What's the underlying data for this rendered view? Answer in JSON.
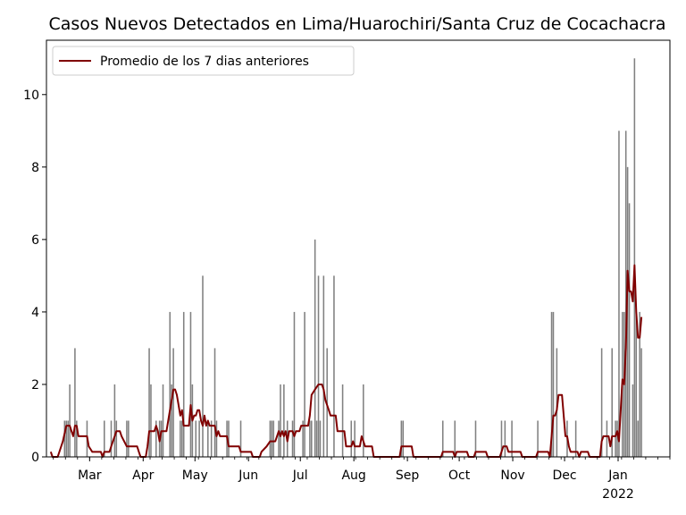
{
  "chart_data": {
    "type": "bar",
    "title": "Casos Nuevos Detectados en Lima/Huarochiri/Santa Cruz de Cocachacra",
    "xlabel": "",
    "ylabel": "",
    "ylim": [
      0,
      11.5
    ],
    "yticks": [
      0,
      2,
      4,
      6,
      8,
      10
    ],
    "x_start": "2021-02-04",
    "x_end": "2022-01-31",
    "xtick_labels": [
      {
        "date": "2021-03-01",
        "label": "Mar"
      },
      {
        "date": "2021-04-01",
        "label": "Apr"
      },
      {
        "date": "2021-05-01",
        "label": "May"
      },
      {
        "date": "2021-06-01",
        "label": "Jun"
      },
      {
        "date": "2021-07-01",
        "label": "Jul"
      },
      {
        "date": "2021-08-01",
        "label": "Aug"
      },
      {
        "date": "2021-09-01",
        "label": "Sep"
      },
      {
        "date": "2021-10-01",
        "label": "Oct"
      },
      {
        "date": "2021-11-01",
        "label": "Nov"
      },
      {
        "date": "2021-12-01",
        "label": "Dec"
      },
      {
        "date": "2022-01-01",
        "label": "Jan",
        "sublabel": "2022"
      }
    ],
    "legend": {
      "label": "Promedio de los 7 dias anteriores",
      "position": "upper-left"
    },
    "bar_color": "#808080",
    "line_color": "#800000",
    "bars": [
      [
        "2021-02-14",
        1
      ],
      [
        "2021-02-15",
        1
      ],
      [
        "2021-02-16",
        1
      ],
      [
        "2021-02-17",
        2
      ],
      [
        "2021-02-20",
        3
      ],
      [
        "2021-02-21",
        1
      ],
      [
        "2021-02-27",
        1
      ],
      [
        "2021-03-09",
        1
      ],
      [
        "2021-03-13",
        1
      ],
      [
        "2021-03-15",
        2
      ],
      [
        "2021-03-16",
        1
      ],
      [
        "2021-03-22",
        1
      ],
      [
        "2021-03-23",
        1
      ],
      [
        "2021-04-04",
        3
      ],
      [
        "2021-04-05",
        2
      ],
      [
        "2021-04-08",
        1
      ],
      [
        "2021-04-10",
        1
      ],
      [
        "2021-04-11",
        1
      ],
      [
        "2021-04-12",
        2
      ],
      [
        "2021-04-16",
        4
      ],
      [
        "2021-04-17",
        2
      ],
      [
        "2021-04-18",
        3
      ],
      [
        "2021-04-22",
        1
      ],
      [
        "2021-04-23",
        1
      ],
      [
        "2021-04-24",
        4
      ],
      [
        "2021-04-28",
        4
      ],
      [
        "2021-04-29",
        2
      ],
      [
        "2021-05-01",
        1
      ],
      [
        "2021-05-03",
        1
      ],
      [
        "2021-05-05",
        5
      ],
      [
        "2021-05-08",
        1
      ],
      [
        "2021-05-10",
        1
      ],
      [
        "2021-05-12",
        3
      ],
      [
        "2021-05-13",
        1
      ],
      [
        "2021-05-19",
        1
      ],
      [
        "2021-05-20",
        1
      ],
      [
        "2021-05-27",
        1
      ],
      [
        "2021-06-13",
        1
      ],
      [
        "2021-06-14",
        1
      ],
      [
        "2021-06-15",
        1
      ],
      [
        "2021-06-18",
        1
      ],
      [
        "2021-06-19",
        2
      ],
      [
        "2021-06-21",
        2
      ],
      [
        "2021-06-23",
        1
      ],
      [
        "2021-06-26",
        1
      ],
      [
        "2021-06-27",
        4
      ],
      [
        "2021-07-02",
        1
      ],
      [
        "2021-07-03",
        4
      ],
      [
        "2021-07-06",
        1
      ],
      [
        "2021-07-07",
        1
      ],
      [
        "2021-07-09",
        6
      ],
      [
        "2021-07-10",
        1
      ],
      [
        "2021-07-11",
        5
      ],
      [
        "2021-07-12",
        1
      ],
      [
        "2021-07-14",
        5
      ],
      [
        "2021-07-16",
        3
      ],
      [
        "2021-07-20",
        5
      ],
      [
        "2021-07-25",
        2
      ],
      [
        "2021-07-30",
        1
      ],
      [
        "2021-08-01",
        1
      ],
      [
        "2021-08-06",
        2
      ],
      [
        "2021-08-28",
        1
      ],
      [
        "2021-08-29",
        1
      ],
      [
        "2021-09-21",
        1
      ],
      [
        "2021-09-28",
        1
      ],
      [
        "2021-10-10",
        1
      ],
      [
        "2021-10-25",
        1
      ],
      [
        "2021-10-27",
        1
      ],
      [
        "2021-10-31",
        1
      ],
      [
        "2021-11-15",
        1
      ],
      [
        "2021-11-23",
        4
      ],
      [
        "2021-11-24",
        4
      ],
      [
        "2021-11-26",
        3
      ],
      [
        "2021-12-02",
        1
      ],
      [
        "2021-12-07",
        1
      ],
      [
        "2021-12-22",
        3
      ],
      [
        "2021-12-25",
        1
      ],
      [
        "2021-12-28",
        3
      ],
      [
        "2021-12-30",
        1
      ],
      [
        "2021-12-31",
        1
      ],
      [
        "2022-01-01",
        9
      ],
      [
        "2022-01-03",
        4
      ],
      [
        "2022-01-04",
        4
      ],
      [
        "2022-01-05",
        9
      ],
      [
        "2022-01-06",
        8
      ],
      [
        "2022-01-07",
        7
      ],
      [
        "2022-01-09",
        2
      ],
      [
        "2022-01-10",
        11
      ],
      [
        "2022-01-11",
        4
      ],
      [
        "2022-01-12",
        1
      ],
      [
        "2022-01-13",
        4
      ],
      [
        "2022-01-14",
        3
      ]
    ],
    "avg_line": [
      [
        "2021-02-06",
        0.14
      ],
      [
        "2021-02-07",
        0.0
      ],
      [
        "2021-02-10",
        0.0
      ],
      [
        "2021-02-11",
        0.14
      ],
      [
        "2021-02-13",
        0.43
      ],
      [
        "2021-02-15",
        0.86
      ],
      [
        "2021-02-17",
        0.86
      ],
      [
        "2021-02-18",
        0.71
      ],
      [
        "2021-02-19",
        0.57
      ],
      [
        "2021-02-20",
        0.86
      ],
      [
        "2021-02-21",
        0.86
      ],
      [
        "2021-02-22",
        0.57
      ],
      [
        "2021-02-27",
        0.57
      ],
      [
        "2021-02-28",
        0.29
      ],
      [
        "2021-03-02",
        0.14
      ],
      [
        "2021-03-07",
        0.14
      ],
      [
        "2021-03-08",
        0.0
      ],
      [
        "2021-03-09",
        0.14
      ],
      [
        "2021-03-12",
        0.14
      ],
      [
        "2021-03-13",
        0.29
      ],
      [
        "2021-03-14",
        0.43
      ],
      [
        "2021-03-15",
        0.57
      ],
      [
        "2021-03-16",
        0.71
      ],
      [
        "2021-03-18",
        0.71
      ],
      [
        "2021-03-19",
        0.57
      ],
      [
        "2021-03-22",
        0.29
      ],
      [
        "2021-03-28",
        0.29
      ],
      [
        "2021-03-29",
        0.14
      ],
      [
        "2021-03-30",
        0.0
      ],
      [
        "2021-04-02",
        0.0
      ],
      [
        "2021-04-03",
        0.29
      ],
      [
        "2021-04-04",
        0.71
      ],
      [
        "2021-04-07",
        0.71
      ],
      [
        "2021-04-08",
        0.86
      ],
      [
        "2021-04-09",
        0.71
      ],
      [
        "2021-04-10",
        0.43
      ],
      [
        "2021-04-11",
        0.71
      ],
      [
        "2021-04-14",
        0.71
      ],
      [
        "2021-04-15",
        1.0
      ],
      [
        "2021-04-16",
        1.29
      ],
      [
        "2021-04-17",
        1.57
      ],
      [
        "2021-04-18",
        1.86
      ],
      [
        "2021-04-19",
        1.86
      ],
      [
        "2021-04-20",
        1.71
      ],
      [
        "2021-04-21",
        1.43
      ],
      [
        "2021-04-22",
        1.14
      ],
      [
        "2021-04-23",
        1.29
      ],
      [
        "2021-04-24",
        0.86
      ],
      [
        "2021-04-27",
        0.86
      ],
      [
        "2021-04-28",
        1.43
      ],
      [
        "2021-04-29",
        1.0
      ],
      [
        "2021-04-30",
        1.14
      ],
      [
        "2021-05-01",
        1.14
      ],
      [
        "2021-05-02",
        1.29
      ],
      [
        "2021-05-03",
        1.29
      ],
      [
        "2021-05-04",
        1.0
      ],
      [
        "2021-05-05",
        0.86
      ],
      [
        "2021-05-06",
        1.14
      ],
      [
        "2021-05-07",
        0.86
      ],
      [
        "2021-05-08",
        1.0
      ],
      [
        "2021-05-09",
        0.86
      ],
      [
        "2021-05-12",
        0.86
      ],
      [
        "2021-05-13",
        0.57
      ],
      [
        "2021-05-14",
        0.71
      ],
      [
        "2021-05-15",
        0.57
      ],
      [
        "2021-05-19",
        0.57
      ],
      [
        "2021-05-20",
        0.29
      ],
      [
        "2021-05-26",
        0.29
      ],
      [
        "2021-05-27",
        0.14
      ],
      [
        "2021-06-02",
        0.14
      ],
      [
        "2021-06-03",
        0.0
      ],
      [
        "2021-06-07",
        0.0
      ],
      [
        "2021-06-08",
        0.14
      ],
      [
        "2021-06-11",
        0.29
      ],
      [
        "2021-06-13",
        0.43
      ],
      [
        "2021-06-16",
        0.43
      ],
      [
        "2021-06-17",
        0.57
      ],
      [
        "2021-06-18",
        0.71
      ],
      [
        "2021-06-19",
        0.57
      ],
      [
        "2021-06-20",
        0.71
      ],
      [
        "2021-06-21",
        0.57
      ],
      [
        "2021-06-22",
        0.71
      ],
      [
        "2021-06-23",
        0.43
      ],
      [
        "2021-06-24",
        0.71
      ],
      [
        "2021-06-26",
        0.71
      ],
      [
        "2021-06-27",
        0.57
      ],
      [
        "2021-06-28",
        0.71
      ],
      [
        "2021-06-30",
        0.71
      ],
      [
        "2021-07-01",
        0.86
      ],
      [
        "2021-07-05",
        0.86
      ],
      [
        "2021-07-06",
        1.14
      ],
      [
        "2021-07-07",
        1.71
      ],
      [
        "2021-07-09",
        1.86
      ],
      [
        "2021-07-11",
        2.0
      ],
      [
        "2021-07-13",
        2.0
      ],
      [
        "2021-07-14",
        1.86
      ],
      [
        "2021-07-15",
        1.57
      ],
      [
        "2021-07-16",
        1.43
      ],
      [
        "2021-07-17",
        1.29
      ],
      [
        "2021-07-18",
        1.14
      ],
      [
        "2021-07-21",
        1.14
      ],
      [
        "2021-07-22",
        0.71
      ],
      [
        "2021-07-26",
        0.71
      ],
      [
        "2021-07-27",
        0.29
      ],
      [
        "2021-07-30",
        0.29
      ],
      [
        "2021-07-31",
        0.43
      ],
      [
        "2021-08-01",
        0.29
      ],
      [
        "2021-08-04",
        0.29
      ],
      [
        "2021-08-05",
        0.57
      ],
      [
        "2021-08-06",
        0.43
      ],
      [
        "2021-08-07",
        0.29
      ],
      [
        "2021-08-11",
        0.29
      ],
      [
        "2021-08-12",
        0.0
      ],
      [
        "2021-08-27",
        0.0
      ],
      [
        "2021-08-28",
        0.29
      ],
      [
        "2021-09-03",
        0.29
      ],
      [
        "2021-09-04",
        0.0
      ],
      [
        "2021-09-20",
        0.0
      ],
      [
        "2021-09-21",
        0.14
      ],
      [
        "2021-09-27",
        0.14
      ],
      [
        "2021-09-28",
        0.0
      ],
      [
        "2021-09-29",
        0.14
      ],
      [
        "2021-10-05",
        0.14
      ],
      [
        "2021-10-06",
        0.0
      ],
      [
        "2021-10-09",
        0.0
      ],
      [
        "2021-10-10",
        0.14
      ],
      [
        "2021-10-16",
        0.14
      ],
      [
        "2021-10-17",
        0.0
      ],
      [
        "2021-10-24",
        0.0
      ],
      [
        "2021-10-25",
        0.14
      ],
      [
        "2021-10-26",
        0.29
      ],
      [
        "2021-10-28",
        0.29
      ],
      [
        "2021-10-29",
        0.14
      ],
      [
        "2021-11-05",
        0.14
      ],
      [
        "2021-11-06",
        0.0
      ],
      [
        "2021-11-14",
        0.0
      ],
      [
        "2021-11-15",
        0.14
      ],
      [
        "2021-11-21",
        0.14
      ],
      [
        "2021-11-22",
        0.0
      ],
      [
        "2021-11-23",
        0.57
      ],
      [
        "2021-11-24",
        1.14
      ],
      [
        "2021-11-25",
        1.14
      ],
      [
        "2021-11-26",
        1.29
      ],
      [
        "2021-11-27",
        1.71
      ],
      [
        "2021-11-29",
        1.71
      ],
      [
        "2021-11-30",
        1.14
      ],
      [
        "2021-12-01",
        0.57
      ],
      [
        "2021-12-02",
        0.57
      ],
      [
        "2021-12-03",
        0.29
      ],
      [
        "2021-12-04",
        0.14
      ],
      [
        "2021-12-08",
        0.14
      ],
      [
        "2021-12-09",
        0.0
      ],
      [
        "2021-12-10",
        0.14
      ],
      [
        "2021-12-14",
        0.14
      ],
      [
        "2021-12-15",
        0.0
      ],
      [
        "2021-12-21",
        0.0
      ],
      [
        "2021-12-22",
        0.43
      ],
      [
        "2021-12-23",
        0.57
      ],
      [
        "2021-12-26",
        0.57
      ],
      [
        "2021-12-27",
        0.29
      ],
      [
        "2021-12-28",
        0.57
      ],
      [
        "2021-12-30",
        0.57
      ],
      [
        "2021-12-31",
        0.71
      ],
      [
        "2022-01-01",
        0.43
      ],
      [
        "2022-01-02",
        1.29
      ],
      [
        "2022-01-03",
        2.14
      ],
      [
        "2022-01-04",
        2.0
      ],
      [
        "2022-01-05",
        3.0
      ],
      [
        "2022-01-06",
        5.14
      ],
      [
        "2022-01-07",
        4.57
      ],
      [
        "2022-01-08",
        4.57
      ],
      [
        "2022-01-09",
        4.29
      ],
      [
        "2022-01-10",
        5.29
      ],
      [
        "2022-01-11",
        4.0
      ],
      [
        "2022-01-12",
        3.29
      ],
      [
        "2022-01-13",
        3.29
      ],
      [
        "2022-01-14",
        3.86
      ]
    ]
  }
}
